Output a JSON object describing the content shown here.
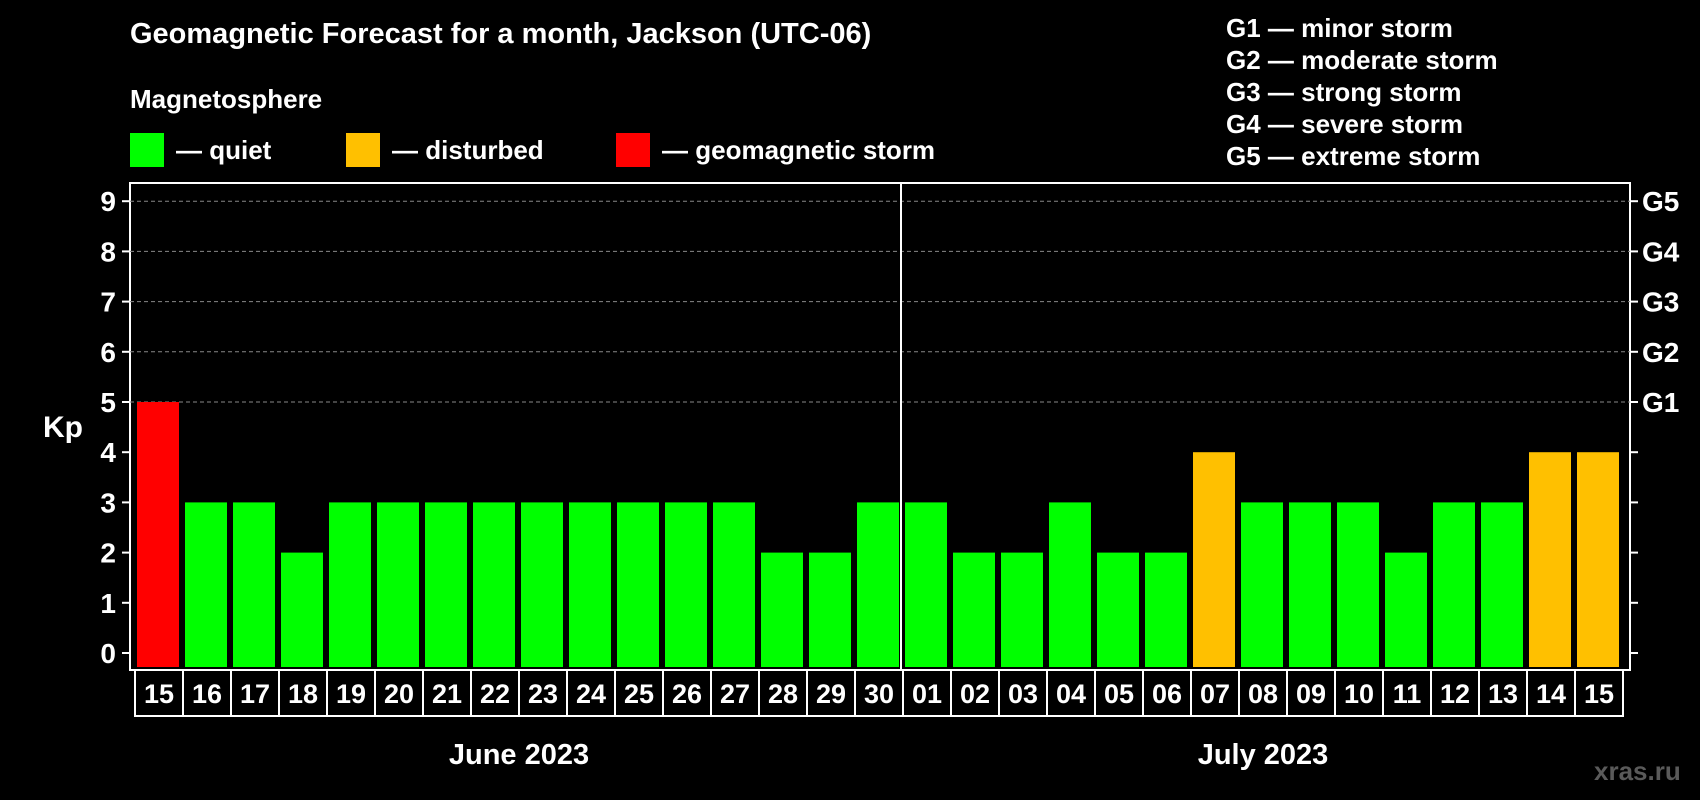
{
  "colors": {
    "quiet": "#00ff00",
    "disturbed": "#ffc000",
    "storm": "#ff0000",
    "background": "#000000",
    "grid": "#888888"
  },
  "title": "Geomagnetic Forecast for a month, Jackson (UTC-06)",
  "legend": {
    "section_title": "Magnetosphere",
    "items": [
      {
        "key": "quiet",
        "label": "— quiet"
      },
      {
        "key": "disturbed",
        "label": "— disturbed"
      },
      {
        "key": "storm",
        "label": "— geomagnetic storm"
      }
    ]
  },
  "storm_levels": [
    "G1 — minor storm",
    "G2 — moderate storm",
    "G3 — strong storm",
    "G4 — severe storm",
    "G5 — extreme storm"
  ],
  "watermark": "xras.ru",
  "chart_data": {
    "type": "bar",
    "title": "Geomagnetic Forecast for a month, Jackson (UTC-06)",
    "ylabel": "Kp",
    "ylim": [
      0,
      9
    ],
    "yticks": [
      "0",
      "1",
      "2",
      "3",
      "4",
      "5",
      "6",
      "7",
      "8",
      "9"
    ],
    "right_axis": [
      {
        "kp": 5,
        "label": "G1"
      },
      {
        "kp": 6,
        "label": "G2"
      },
      {
        "kp": 7,
        "label": "G3"
      },
      {
        "kp": 8,
        "label": "G4"
      },
      {
        "kp": 9,
        "label": "G5"
      }
    ],
    "categories": [
      "15",
      "16",
      "17",
      "18",
      "19",
      "20",
      "21",
      "22",
      "23",
      "24",
      "25",
      "26",
      "27",
      "28",
      "29",
      "30",
      "01",
      "02",
      "03",
      "04",
      "05",
      "06",
      "07",
      "08",
      "09",
      "10",
      "11",
      "12",
      "13",
      "14",
      "15"
    ],
    "values": [
      5,
      3,
      3,
      2,
      3,
      3,
      3,
      3,
      3,
      3,
      3,
      3,
      3,
      2,
      2,
      3,
      3,
      2,
      2,
      3,
      2,
      2,
      4,
      3,
      3,
      3,
      2,
      3,
      3,
      4,
      4
    ],
    "status": [
      "storm",
      "quiet",
      "quiet",
      "quiet",
      "quiet",
      "quiet",
      "quiet",
      "quiet",
      "quiet",
      "quiet",
      "quiet",
      "quiet",
      "quiet",
      "quiet",
      "quiet",
      "quiet",
      "quiet",
      "quiet",
      "quiet",
      "quiet",
      "quiet",
      "quiet",
      "disturbed",
      "quiet",
      "quiet",
      "quiet",
      "quiet",
      "quiet",
      "quiet",
      "disturbed",
      "disturbed"
    ],
    "months": [
      {
        "label": "June 2023",
        "days": 16
      },
      {
        "label": "July 2023",
        "days": 15
      }
    ]
  }
}
